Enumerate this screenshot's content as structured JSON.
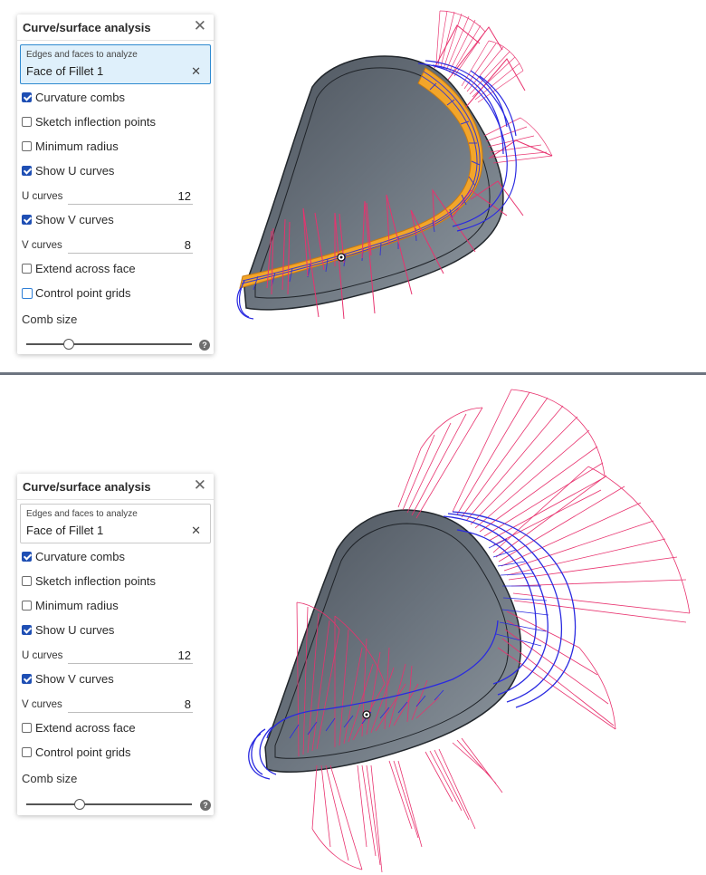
{
  "panels": [
    {
      "title": "Curve/surface analysis",
      "selection": {
        "caption": "Edges and faces to analyze",
        "value": "Face of Fillet 1"
      },
      "options": {
        "curvature_combs": {
          "label": "Curvature combs",
          "checked": true
        },
        "sketch_inflection_points": {
          "label": "Sketch inflection points",
          "checked": false
        },
        "minimum_radius": {
          "label": "Minimum radius",
          "checked": false
        },
        "show_u_curves": {
          "label": "Show U curves",
          "checked": true
        },
        "show_v_curves": {
          "label": "Show V curves",
          "checked": true
        },
        "extend_across_face": {
          "label": "Extend across face",
          "checked": false
        },
        "control_point_grids": {
          "label": "Control point grids",
          "checked": false
        }
      },
      "u_curves": {
        "label": "U curves",
        "value": "12"
      },
      "v_curves": {
        "label": "V curves",
        "value": "8"
      },
      "comb_size": {
        "label": "Comb size",
        "level": 0.25
      }
    },
    {
      "title": "Curve/surface analysis",
      "selection": {
        "caption": "Edges and faces to analyze",
        "value": "Face of Fillet 1"
      },
      "options": {
        "curvature_combs": {
          "label": "Curvature combs",
          "checked": true
        },
        "sketch_inflection_points": {
          "label": "Sketch inflection points",
          "checked": false
        },
        "minimum_radius": {
          "label": "Minimum radius",
          "checked": false
        },
        "show_u_curves": {
          "label": "Show U curves",
          "checked": true
        },
        "show_v_curves": {
          "label": "Show V curves",
          "checked": true
        },
        "extend_across_face": {
          "label": "Extend across face",
          "checked": false
        },
        "control_point_grids": {
          "label": "Control point grids",
          "checked": false
        }
      },
      "u_curves": {
        "label": "U curves",
        "value": "12"
      },
      "v_curves": {
        "label": "V curves",
        "value": "8"
      },
      "comb_size": {
        "label": "Comb size",
        "level": 0.31
      }
    }
  ],
  "icons": {
    "close": "close-icon",
    "clear": "clear-selection-icon",
    "help": "help-icon"
  },
  "colors": {
    "comb": "#e8326e",
    "curves": "#2a2ae0",
    "part": "#5d6670",
    "selected_face": "#f0a020",
    "checkbox": "#1f4fb4",
    "selected_field_bg": "#dff0fb"
  }
}
